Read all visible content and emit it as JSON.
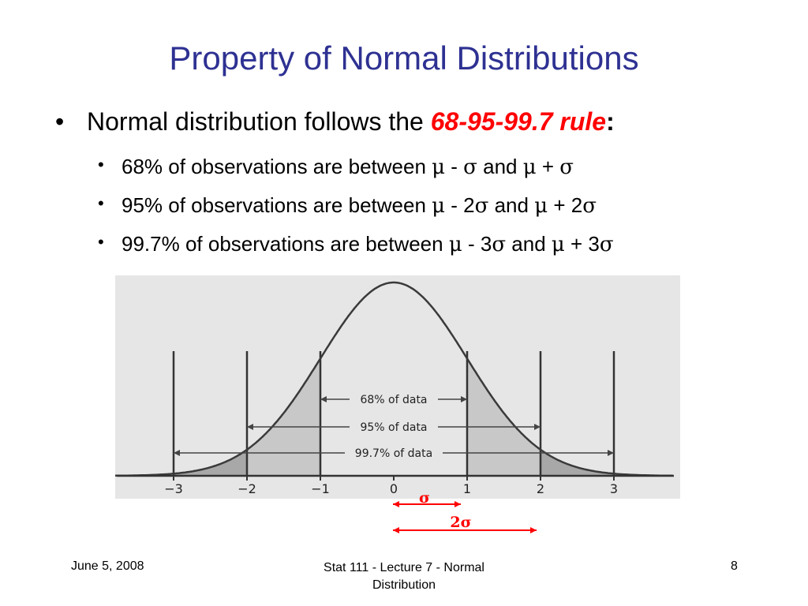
{
  "slide": {
    "title": "Property of Normal Distributions",
    "main_bullet": {
      "text": "Normal distribution follows the ",
      "rule": "68-95-99.7 rule",
      "suffix": ":"
    },
    "sub_bullets": [
      {
        "pre": "68% of observations are between ",
        "a": "μ",
        "mid1": " - ",
        "b": "σ",
        "mid2": " and ",
        "c": "μ",
        "mid3": " + ",
        "d": "σ"
      },
      {
        "pre": "95% of observations are between ",
        "a": "μ",
        "mid1": " - 2",
        "b": "σ",
        "mid2": " and ",
        "c": "μ",
        "mid3": " + 2",
        "d": "σ"
      },
      {
        "pre": "99.7% of observations are between ",
        "a": "μ",
        "mid1": " - 3",
        "b": "σ",
        "mid2": " and ",
        "c": "μ",
        "mid3": " + 3",
        "d": "σ"
      }
    ],
    "bullet_symbol": "•"
  },
  "figure": {
    "tick_labels": [
      "−3",
      "−2",
      "−1",
      "0",
      "1",
      "2",
      "3"
    ],
    "range_labels": [
      "68% of data",
      "95% of data",
      "99.7% of data"
    ],
    "sigma_label": "σ",
    "two_sigma_label": "2σ",
    "colors": {
      "panel": "#e6e6e6",
      "shade_light": "#c8c8c8",
      "shade_dark": "#a8a8a8",
      "annotation": "#ff0000"
    }
  },
  "footer": {
    "date": "June 5, 2008",
    "course_line1": "Stat 111 - Lecture 7 - Normal",
    "course_line2": "Distribution",
    "page": "8"
  }
}
